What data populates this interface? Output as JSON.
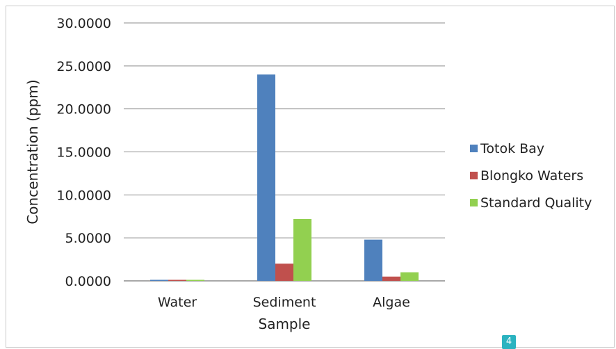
{
  "chart_data": {
    "type": "bar",
    "title": "",
    "xlabel": "Sample",
    "ylabel": "Concentration (ppm)",
    "categories": [
      "Water",
      "Sediment",
      "Algae"
    ],
    "series": [
      {
        "name": "Totok Bay",
        "color": "#4f81bd",
        "values": [
          0.1,
          24.0,
          4.8
        ]
      },
      {
        "name": "Blongko Waters",
        "color": "#c0504d",
        "values": [
          0.1,
          2.0,
          0.5
        ]
      },
      {
        "name": "Standard Quality",
        "color": "#92d050",
        "values": [
          0.1,
          7.2,
          1.0
        ]
      }
    ],
    "ylim": [
      0,
      30
    ],
    "yticks": [
      "0.0000",
      "5.0000",
      "10.0000",
      "15.0000",
      "20.0000",
      "25.0000",
      "30.0000"
    ],
    "grid": true,
    "legend_position": "right"
  },
  "page_badge": "4"
}
